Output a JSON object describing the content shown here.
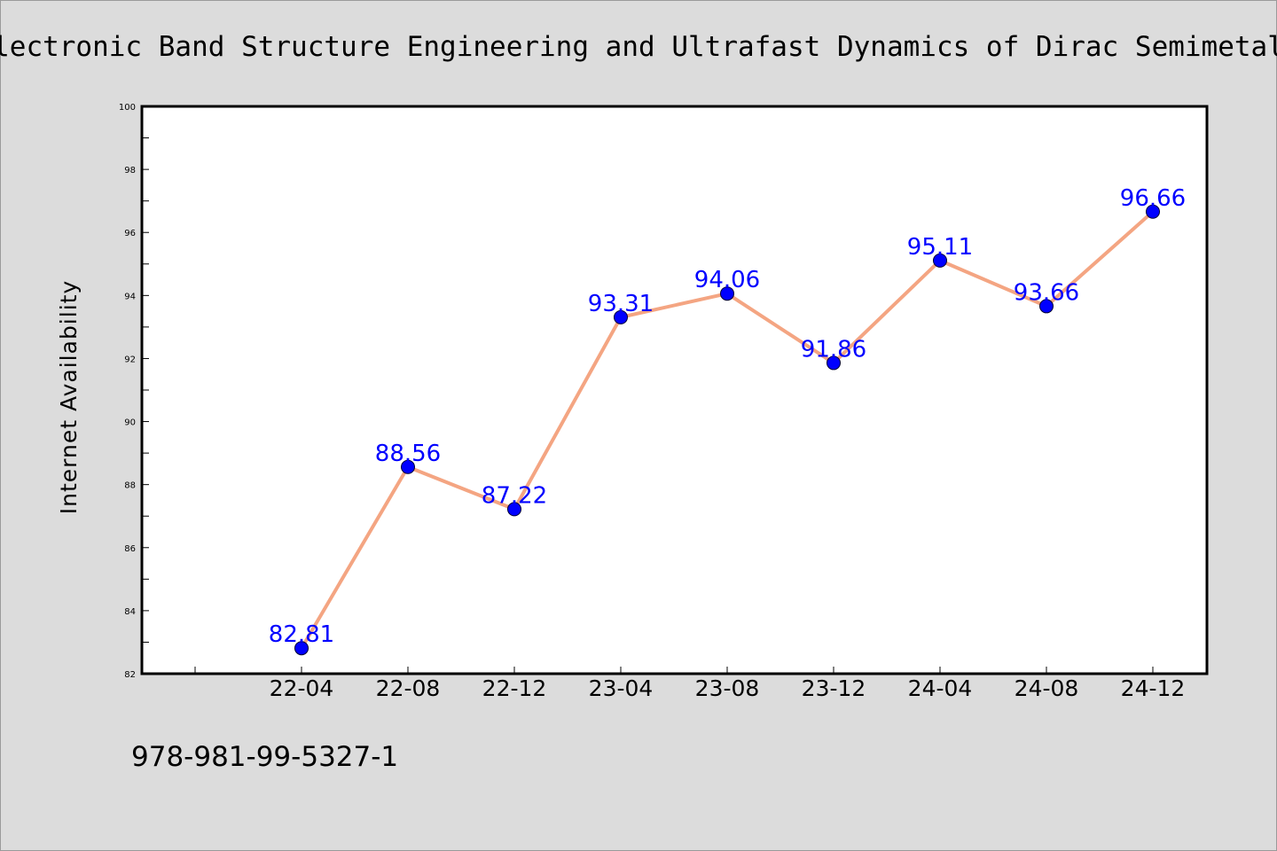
{
  "chart_data": {
    "type": "line",
    "title": "Electronic Band Structure Engineering and Ultrafast Dynamics of Dirac Semimetals",
    "xlabel": "",
    "ylabel": "Internet Availability",
    "categories": [
      "22-04",
      "22-08",
      "22-12",
      "23-04",
      "23-08",
      "23-12",
      "24-04",
      "24-08",
      "24-12"
    ],
    "series": [
      {
        "values": [
          82.81,
          88.56,
          87.22,
          93.31,
          94.06,
          91.86,
          95.11,
          93.66,
          96.66
        ],
        "line_color": "#f4a582",
        "marker_color": "#0000ff"
      }
    ],
    "data_labels": [
      "82.81",
      "88.56",
      "87.22",
      "93.31",
      "94.06",
      "91.86",
      "95.11",
      "93.66",
      "96.66"
    ],
    "ylim": [
      82,
      100
    ],
    "yticks": [
      "82",
      "84",
      "86",
      "88",
      "90",
      "92",
      "94",
      "96",
      "98",
      "100"
    ],
    "grid": false,
    "label_color": "#0000ff"
  },
  "footer": {
    "isbn": "978-981-99-5327-1"
  }
}
